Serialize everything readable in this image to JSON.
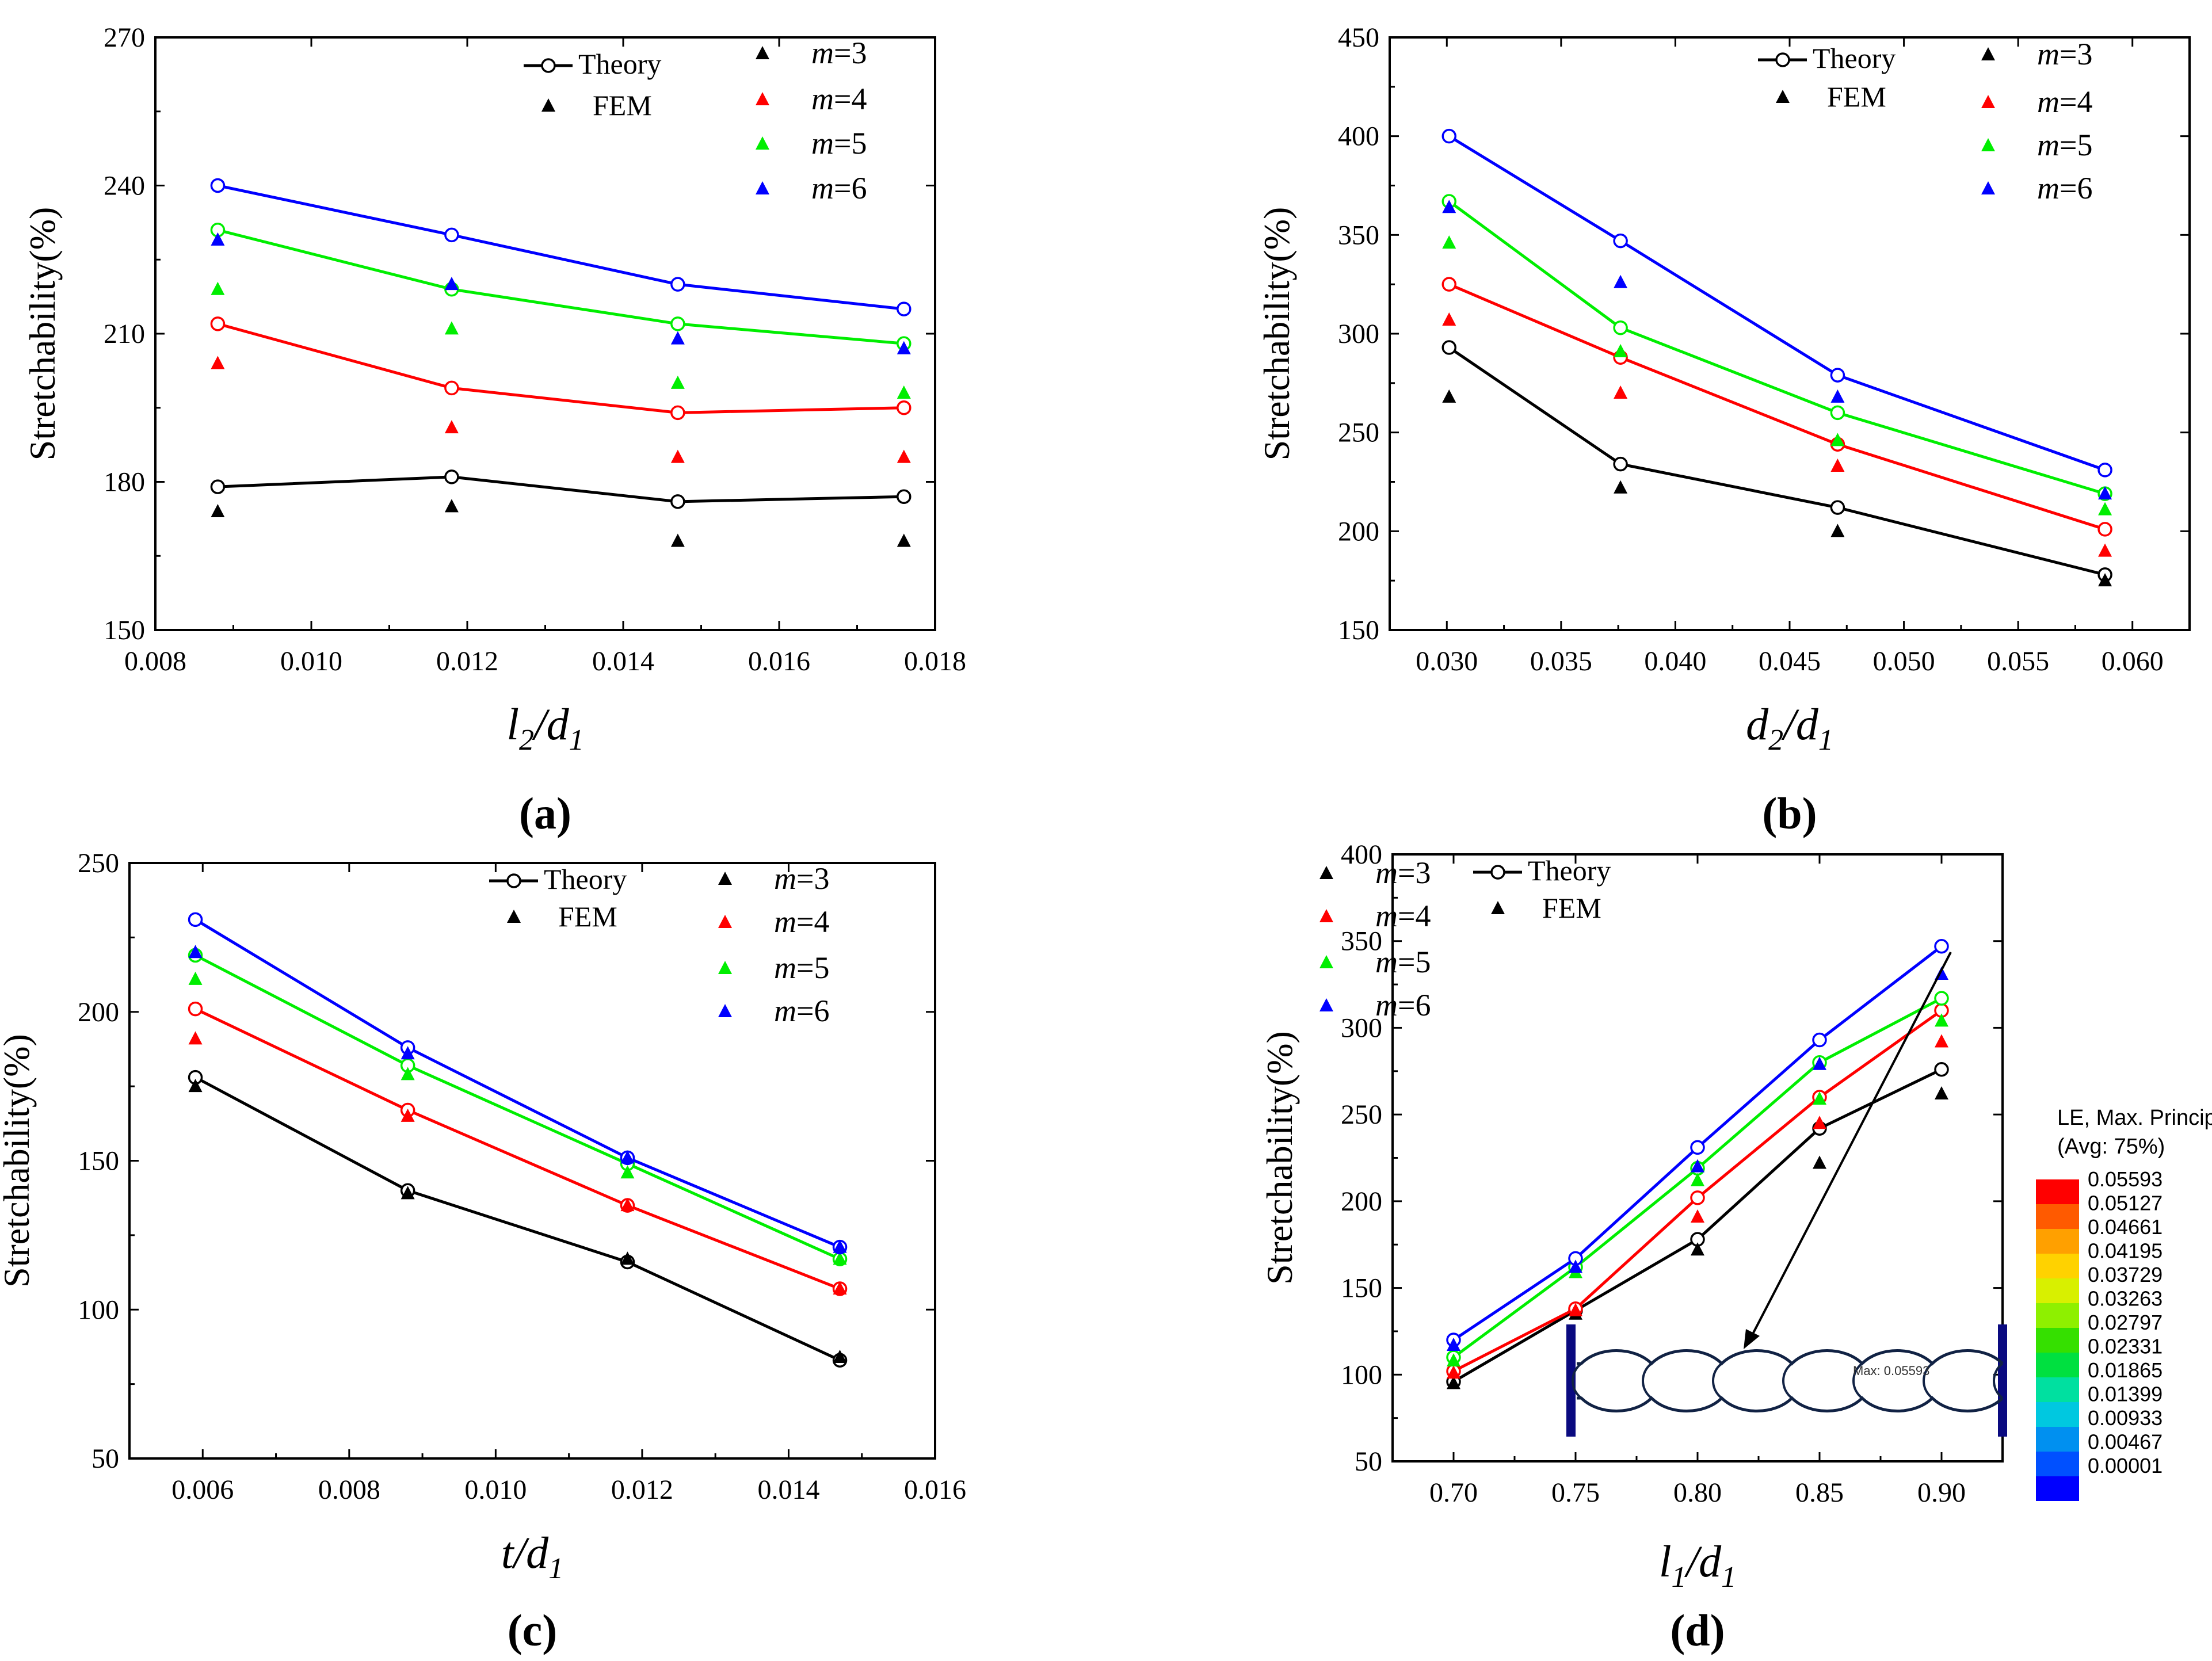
{
  "chart_data": [
    {
      "type": "line",
      "panel_label": "(a)",
      "xlabel": "l2/d1",
      "xlabel_main": "l",
      "xlabel_sub1": "2",
      "xlabel_div": "/d",
      "xlabel_sub2": "1",
      "ylabel": "Stretchability(%)",
      "xlim": [
        0.008,
        0.018
      ],
      "ylim": [
        150,
        270
      ],
      "xticks": [
        "0.008",
        "0.010",
        "0.012",
        "0.014",
        "0.016",
        "0.018"
      ],
      "yticks": [
        "150",
        "180",
        "210",
        "240",
        "270"
      ],
      "legend": {
        "theory": "Theory",
        "fem": "FEM",
        "m_prefix": "m",
        "m_labels": [
          "=3",
          "=4",
          "=5",
          "=6"
        ]
      },
      "x": [
        0.0088,
        0.0118,
        0.0147,
        0.0176
      ],
      "series": [
        {
          "name": "m=3",
          "color": "#000000",
          "theory": [
            179,
            181,
            176,
            177
          ],
          "fem": [
            174,
            175,
            168,
            168
          ]
        },
        {
          "name": "m=4",
          "color": "#ff0000",
          "theory": [
            212,
            199,
            194,
            195
          ],
          "fem": [
            204,
            191,
            185,
            185
          ]
        },
        {
          "name": "m=5",
          "color": "#00ee00",
          "theory": [
            231,
            219,
            212,
            208
          ],
          "fem": [
            219,
            211,
            200,
            198
          ]
        },
        {
          "name": "m=6",
          "color": "#0000ff",
          "theory": [
            240,
            230,
            220,
            215
          ],
          "fem": [
            229,
            220,
            209,
            207
          ]
        }
      ]
    },
    {
      "type": "line",
      "panel_label": "(b)",
      "xlabel": "d2/d1",
      "xlabel_main": "d",
      "xlabel_sub1": "2",
      "xlabel_div": "/d",
      "xlabel_sub2": "1",
      "ylabel": "Stretchability(%)",
      "xlim": [
        0.0275,
        0.0625
      ],
      "ylim": [
        150,
        450
      ],
      "xticks": [
        "0.030",
        "0.035",
        "0.040",
        "0.045",
        "0.050",
        "0.055",
        "0.060"
      ],
      "yticks": [
        "150",
        "200",
        "250",
        "300",
        "350",
        "400",
        "450"
      ],
      "legend": {
        "theory": "Theory",
        "fem": "FEM",
        "m_prefix": "m",
        "m_labels": [
          "=3",
          "=4",
          "=5",
          "=6"
        ]
      },
      "x": [
        0.0301,
        0.0376,
        0.0471,
        0.0588
      ],
      "series": [
        {
          "name": "m=3",
          "color": "#000000",
          "theory": [
            293,
            234,
            212,
            178
          ],
          "fem": [
            268,
            222,
            200,
            175
          ]
        },
        {
          "name": "m=4",
          "color": "#ff0000",
          "theory": [
            325,
            288,
            244,
            201
          ],
          "fem": [
            307,
            270,
            233,
            190
          ]
        },
        {
          "name": "m=5",
          "color": "#00ee00",
          "theory": [
            367,
            303,
            260,
            219
          ],
          "fem": [
            346,
            291,
            246,
            211
          ]
        },
        {
          "name": "m=6",
          "color": "#0000ff",
          "theory": [
            400,
            347,
            279,
            231
          ],
          "fem": [
            364,
            326,
            268,
            219
          ]
        }
      ]
    },
    {
      "type": "line",
      "panel_label": "(c)",
      "xlabel": "t/d1",
      "xlabel_main": "t",
      "xlabel_sub1": "",
      "xlabel_div": "/d",
      "xlabel_sub2": "1",
      "ylabel": "Stretchability(%)",
      "xlim": [
        0.005,
        0.016
      ],
      "ylim": [
        50,
        250
      ],
      "xticks": [
        "0.006",
        "0.008",
        "0.010",
        "0.012",
        "0.014",
        "0.016"
      ],
      "yticks": [
        "50",
        "100",
        "150",
        "200",
        "250"
      ],
      "legend": {
        "theory": "Theory",
        "fem": "FEM",
        "m_prefix": "m",
        "m_labels": [
          "=3",
          "=4",
          "=5",
          "=6"
        ]
      },
      "x": [
        0.0059,
        0.0088,
        0.0118,
        0.0147
      ],
      "series": [
        {
          "name": "m=3",
          "color": "#000000",
          "theory": [
            178,
            140,
            116,
            83
          ],
          "fem": [
            175,
            139,
            117,
            84
          ]
        },
        {
          "name": "m=4",
          "color": "#ff0000",
          "theory": [
            201,
            167,
            135,
            107
          ],
          "fem": [
            191,
            165,
            135,
            107
          ]
        },
        {
          "name": "m=5",
          "color": "#00ee00",
          "theory": [
            219,
            182,
            149,
            117
          ],
          "fem": [
            211,
            179,
            146,
            117
          ]
        },
        {
          "name": "m=6",
          "color": "#0000ff",
          "theory": [
            231,
            188,
            151,
            121
          ],
          "fem": [
            220,
            186,
            151,
            121
          ]
        }
      ]
    },
    {
      "type": "line",
      "panel_label": "(d)",
      "xlabel": "l1/d1",
      "xlabel_main": "l",
      "xlabel_sub1": "1",
      "xlabel_div": "/d",
      "xlabel_sub2": "1",
      "ylabel": "Stretchability(%)",
      "xlim": [
        0.675,
        0.925
      ],
      "ylim": [
        50,
        400
      ],
      "xticks": [
        "0.70",
        "0.75",
        "0.80",
        "0.85",
        "0.90"
      ],
      "yticks": [
        "50",
        "100",
        "150",
        "200",
        "250",
        "300",
        "350",
        "400"
      ],
      "legend": {
        "theory": "Theory",
        "fem": "FEM",
        "m_prefix": "m",
        "m_labels": [
          "=3",
          "=4",
          "=5",
          "=6"
        ]
      },
      "x": [
        0.7,
        0.75,
        0.8,
        0.85,
        0.9
      ],
      "series": [
        {
          "name": "m=3",
          "color": "#000000",
          "theory": [
            96,
            137,
            178,
            242,
            276
          ],
          "fem": [
            95,
            135,
            172,
            222,
            262
          ]
        },
        {
          "name": "m=4",
          "color": "#ff0000",
          "theory": [
            102,
            138,
            202,
            260,
            310
          ],
          "fem": [
            101,
            137,
            191,
            245,
            292
          ]
        },
        {
          "name": "m=5",
          "color": "#00ee00",
          "theory": [
            110,
            162,
            219,
            280,
            317
          ],
          "fem": [
            108,
            159,
            212,
            259,
            304
          ]
        },
        {
          "name": "m=6",
          "color": "#0000ff",
          "theory": [
            120,
            167,
            231,
            293,
            347
          ],
          "fem": [
            117,
            162,
            220,
            279,
            331
          ]
        }
      ],
      "inset": {
        "label": "Max: 0.05593"
      },
      "colorbar": {
        "title": [
          "LE, Max. Principal",
          "(Avg: 75%)"
        ],
        "labels": [
          "0.05593",
          "0.05127",
          "0.04661",
          "0.04195",
          "0.03729",
          "0.03263",
          "0.02797",
          "0.02331",
          "0.01865",
          "0.01399",
          "0.00933",
          "0.00467",
          "0.00001"
        ],
        "colors": [
          "#ff0000",
          "#ff5a00",
          "#ffa000",
          "#ffd200",
          "#d8f000",
          "#8ef000",
          "#35e000",
          "#00e040",
          "#00e0a0",
          "#00c8e0",
          "#0090f0",
          "#0050ff",
          "#0000ff"
        ]
      }
    }
  ]
}
